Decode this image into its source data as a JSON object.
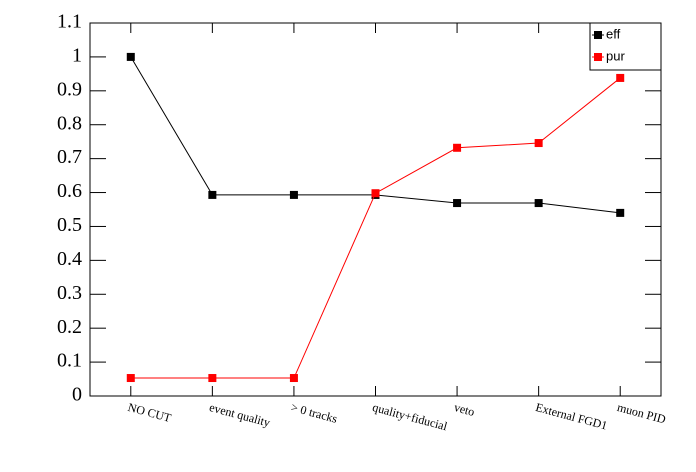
{
  "chart_data": {
    "type": "line",
    "categories": [
      "NO CUT",
      "event quality",
      "> 0 tracks",
      "quality+fiducial",
      "veto",
      "External FGD1",
      "muon PID"
    ],
    "series": [
      {
        "name": "eff",
        "color": "#000000",
        "values": [
          1.0,
          0.593,
          0.593,
          0.593,
          0.569,
          0.569,
          0.54
        ]
      },
      {
        "name": "pur",
        "color": "#ff0000",
        "values": [
          0.053,
          0.053,
          0.053,
          0.598,
          0.732,
          0.746,
          0.938
        ]
      }
    ],
    "ylim": [
      0,
      1.1
    ],
    "yticks": [
      0,
      0.1,
      0.2,
      0.3,
      0.4,
      0.5,
      0.6,
      0.7,
      0.8,
      0.9,
      1,
      1.1
    ],
    "legend": "top-right"
  }
}
